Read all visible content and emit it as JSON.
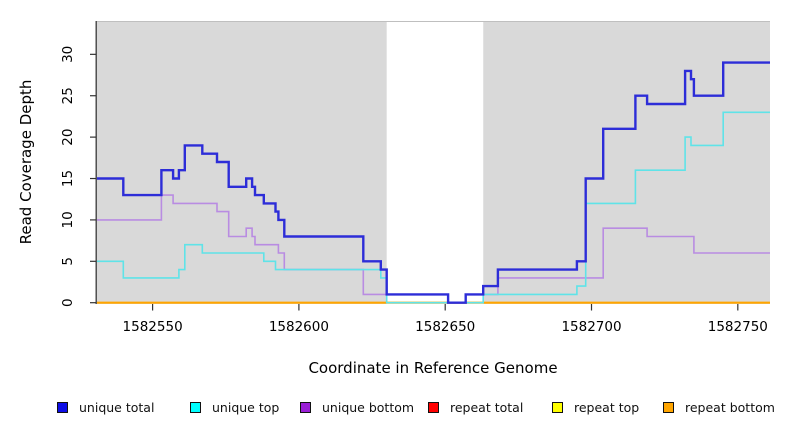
{
  "chart_data": {
    "type": "line",
    "step": true,
    "title": "",
    "xlabel": "Coordinate in Reference Genome",
    "ylabel": "Read Coverage Depth",
    "x_range": [
      1582531,
      1582761
    ],
    "y_range": [
      0,
      34
    ],
    "x_ticks": [
      1582550,
      1582600,
      1582650,
      1582700,
      1582750
    ],
    "y_ticks": [
      0,
      5,
      10,
      15,
      20,
      25,
      30
    ],
    "grid": false,
    "legend_position": "bottom",
    "plot_bg": "#d9d9d9",
    "gap_band": {
      "x_start": 1582630,
      "x_end": 1582663,
      "color": "#ffffff"
    },
    "series": [
      {
        "name": "repeat total",
        "color": "#ff0000",
        "width": 1,
        "points": [
          [
            1582531,
            0
          ]
        ]
      },
      {
        "name": "repeat top",
        "color": "#ffff00",
        "width": 1,
        "points": [
          [
            1582531,
            0
          ]
        ]
      },
      {
        "name": "repeat bottom",
        "color": "#ffa500",
        "width": 2.2,
        "points": [
          [
            1582531,
            0
          ]
        ]
      },
      {
        "name": "unique bottom",
        "color": "#b98ce2",
        "width": 1.6,
        "points": [
          [
            1582531,
            10
          ],
          [
            1582553,
            13
          ],
          [
            1582557,
            12
          ],
          [
            1582572,
            11
          ],
          [
            1582576,
            8
          ],
          [
            1582582,
            9
          ],
          [
            1582584,
            8
          ],
          [
            1582585,
            7
          ],
          [
            1582593,
            6
          ],
          [
            1582595,
            4
          ],
          [
            1582622,
            1
          ],
          [
            1582651,
            0
          ],
          [
            1582657,
            1
          ],
          [
            1582668,
            3
          ],
          [
            1582704,
            9
          ],
          [
            1582719,
            8
          ],
          [
            1582735,
            6
          ]
        ]
      },
      {
        "name": "unique top",
        "color": "#5fe3e8",
        "width": 1.6,
        "points": [
          [
            1582531,
            5
          ],
          [
            1582540,
            3
          ],
          [
            1582559,
            4
          ],
          [
            1582561,
            7
          ],
          [
            1582567,
            6
          ],
          [
            1582588,
            5
          ],
          [
            1582592,
            4
          ],
          [
            1582628,
            3
          ],
          [
            1582630,
            0
          ],
          [
            1582663,
            1
          ],
          [
            1582695,
            2
          ],
          [
            1582698,
            12
          ],
          [
            1582715,
            16
          ],
          [
            1582732,
            20
          ],
          [
            1582734,
            19
          ],
          [
            1582745,
            23
          ]
        ]
      },
      {
        "name": "unique total",
        "color": "#2d2dd8",
        "width": 2.4,
        "points": [
          [
            1582531,
            15
          ],
          [
            1582540,
            13
          ],
          [
            1582553,
            16
          ],
          [
            1582557,
            15
          ],
          [
            1582559,
            16
          ],
          [
            1582561,
            19
          ],
          [
            1582567,
            18
          ],
          [
            1582572,
            17
          ],
          [
            1582576,
            14
          ],
          [
            1582582,
            15
          ],
          [
            1582584,
            14
          ],
          [
            1582585,
            13
          ],
          [
            1582588,
            12
          ],
          [
            1582592,
            11
          ],
          [
            1582593,
            10
          ],
          [
            1582595,
            8
          ],
          [
            1582622,
            5
          ],
          [
            1582628,
            4
          ],
          [
            1582630,
            1
          ],
          [
            1582651,
            0
          ],
          [
            1582657,
            1
          ],
          [
            1582663,
            2
          ],
          [
            1582668,
            4
          ],
          [
            1582695,
            5
          ],
          [
            1582698,
            15
          ],
          [
            1582704,
            21
          ],
          [
            1582715,
            25
          ],
          [
            1582719,
            24
          ],
          [
            1582732,
            28
          ],
          [
            1582734,
            27
          ],
          [
            1582735,
            25
          ],
          [
            1582745,
            29
          ]
        ]
      }
    ]
  },
  "legend": {
    "items": [
      {
        "label": "unique total",
        "color": "#0d0de6"
      },
      {
        "label": "unique top",
        "color": "#00ffff"
      },
      {
        "label": "unique bottom",
        "color": "#9a1fd6"
      },
      {
        "label": "repeat total",
        "color": "#ff0000"
      },
      {
        "label": "repeat top",
        "color": "#ffff00"
      },
      {
        "label": "repeat bottom",
        "color": "#ffa500"
      }
    ]
  }
}
